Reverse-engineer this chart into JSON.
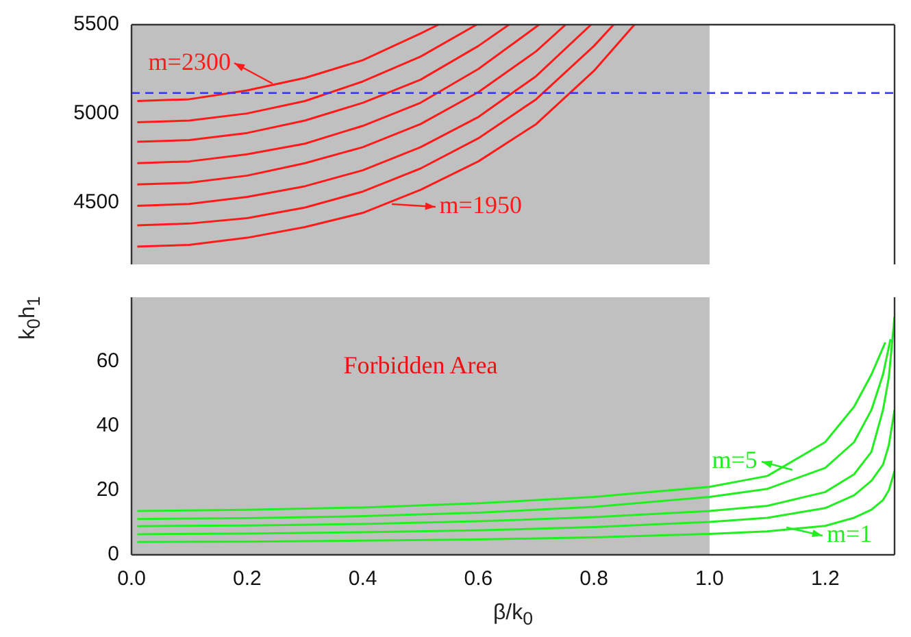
{
  "chart_data": [
    {
      "type": "line",
      "xlim": [
        0,
        1.32
      ],
      "ylim": [
        4150,
        5500
      ],
      "yticks": [
        4500,
        5000,
        5500
      ],
      "tick_labels": "y",
      "grid": false,
      "legend": false,
      "marker": "none",
      "line_style": "solid",
      "series": [
        {
          "color": "#ff1a1a",
          "x": [
            0.01,
            0.1,
            0.2,
            0.3,
            0.4,
            0.5,
            0.531
          ],
          "values": [
            5070,
            5080,
            5130,
            5200,
            5300,
            5450,
            5500
          ]
        },
        {
          "color": "#ff1a1a",
          "x": [
            0.01,
            0.1,
            0.2,
            0.3,
            0.4,
            0.5,
            0.597
          ],
          "values": [
            4950,
            4960,
            5000,
            5070,
            5180,
            5320,
            5500
          ]
        },
        {
          "color": "#ff1a1a",
          "x": [
            0.01,
            0.1,
            0.2,
            0.3,
            0.4,
            0.5,
            0.6,
            0.653
          ],
          "values": [
            4840,
            4850,
            4890,
            4960,
            5060,
            5190,
            5380,
            5500
          ]
        },
        {
          "color": "#ff1a1a",
          "x": [
            0.01,
            0.1,
            0.2,
            0.3,
            0.4,
            0.5,
            0.6,
            0.705
          ],
          "values": [
            4720,
            4730,
            4770,
            4830,
            4930,
            5060,
            5250,
            5500
          ]
        },
        {
          "color": "#ff1a1a",
          "x": [
            0.01,
            0.1,
            0.2,
            0.3,
            0.4,
            0.5,
            0.6,
            0.7,
            0.751
          ],
          "values": [
            4600,
            4610,
            4650,
            4720,
            4810,
            4940,
            5120,
            5350,
            5500
          ]
        },
        {
          "color": "#ff1a1a",
          "x": [
            0.01,
            0.1,
            0.2,
            0.3,
            0.4,
            0.5,
            0.6,
            0.7,
            0.795
          ],
          "values": [
            4480,
            4490,
            4530,
            4590,
            4680,
            4810,
            4980,
            5210,
            5500
          ]
        },
        {
          "color": "#ff1a1a",
          "x": [
            0.01,
            0.1,
            0.2,
            0.3,
            0.4,
            0.5,
            0.6,
            0.7,
            0.8,
            0.834
          ],
          "values": [
            4370,
            4380,
            4410,
            4470,
            4560,
            4690,
            4860,
            5080,
            5380,
            5500
          ]
        },
        {
          "color": "#ff1a1a",
          "x": [
            0.01,
            0.1,
            0.2,
            0.3,
            0.4,
            0.5,
            0.6,
            0.7,
            0.8,
            0.87
          ],
          "values": [
            4250,
            4260,
            4300,
            4360,
            4440,
            4570,
            4730,
            4940,
            5240,
            5500
          ]
        }
      ],
      "bands": [
        {
          "axis": "x",
          "from": 0,
          "to": 1,
          "color": "#c0c0c0"
        }
      ],
      "ref_lines": [
        {
          "axis": "y",
          "value": 5115,
          "color": "#3333ff",
          "line_style": "dashed"
        }
      ],
      "annotations": [
        {
          "text": "m=2300",
          "x": 0.245,
          "y": 5165
        },
        {
          "text": "m=1950",
          "x": 0.45,
          "y": 4490
        }
      ]
    },
    {
      "type": "line",
      "xlabel": "β/k$_{0}$",
      "ylabel": "k$_{0}$h$_{1}$",
      "xlim": [
        0,
        1.32
      ],
      "xticks": [
        {
          "value": 0,
          "label": "0.0"
        },
        {
          "value": 0.2,
          "label": "0.2"
        },
        {
          "value": 0.4,
          "label": "0.4"
        },
        {
          "value": 0.6,
          "label": "0.6"
        },
        {
          "value": 0.8,
          "label": "0.8"
        },
        {
          "value": 1,
          "label": "1.0"
        },
        {
          "value": 1.2,
          "label": "1.2"
        }
      ],
      "ylim": [
        0,
        80
      ],
      "yticks": [
        0,
        20,
        40,
        60
      ],
      "grid": false,
      "legend": false,
      "marker": "none",
      "line_style": "solid",
      "series": [
        {
          "color": "#22ee22",
          "x": [
            0.01,
            0.2,
            0.4,
            0.6,
            0.8,
            1,
            1.1,
            1.2,
            1.25,
            1.28,
            1.3,
            1.31,
            1.32
          ],
          "values": [
            4.0,
            4.1,
            4.4,
            4.8,
            5.4,
            6.5,
            7.3,
            9.0,
            11.5,
            14,
            17,
            20,
            26
          ]
        },
        {
          "color": "#22ee22",
          "x": [
            0.01,
            0.2,
            0.4,
            0.6,
            0.8,
            1,
            1.1,
            1.2,
            1.25,
            1.28,
            1.3,
            1.31,
            1.32
          ],
          "values": [
            6.4,
            6.6,
            7.0,
            7.6,
            8.6,
            10.2,
            11.5,
            14.5,
            18.5,
            23,
            28,
            34,
            45
          ]
        },
        {
          "color": "#22ee22",
          "x": [
            0.01,
            0.2,
            0.4,
            0.6,
            0.8,
            1,
            1.1,
            1.2,
            1.25,
            1.28,
            1.3,
            1.31,
            1.32
          ],
          "values": [
            8.9,
            9.1,
            9.6,
            10.4,
            11.7,
            13.6,
            15.2,
            19.5,
            25,
            32,
            45,
            55,
            74
          ]
        },
        {
          "color": "#22ee22",
          "x": [
            0.01,
            0.2,
            0.4,
            0.6,
            0.8,
            1,
            1.1,
            1.2,
            1.25,
            1.28,
            1.3,
            1.313
          ],
          "values": [
            11.1,
            11.4,
            12.0,
            13.1,
            14.9,
            18.0,
            20.5,
            27,
            35,
            45,
            56,
            67
          ]
        },
        {
          "color": "#22ee22",
          "x": [
            0.01,
            0.2,
            0.4,
            0.6,
            0.8,
            1,
            1.1,
            1.2,
            1.25,
            1.28,
            1.304
          ],
          "values": [
            13.6,
            14.0,
            14.7,
            16.0,
            18.0,
            21.1,
            24.5,
            35,
            46,
            56,
            66
          ]
        }
      ],
      "bands": [
        {
          "axis": "x",
          "from": 0,
          "to": 1,
          "color": "#c0c0c0",
          "label": "Forbidden Area"
        }
      ],
      "annotations": [
        {
          "text": "m=5",
          "x": 1.143,
          "y": 26.5
        },
        {
          "text": "m=1",
          "x": 1.133,
          "y": 8.7
        }
      ]
    }
  ]
}
